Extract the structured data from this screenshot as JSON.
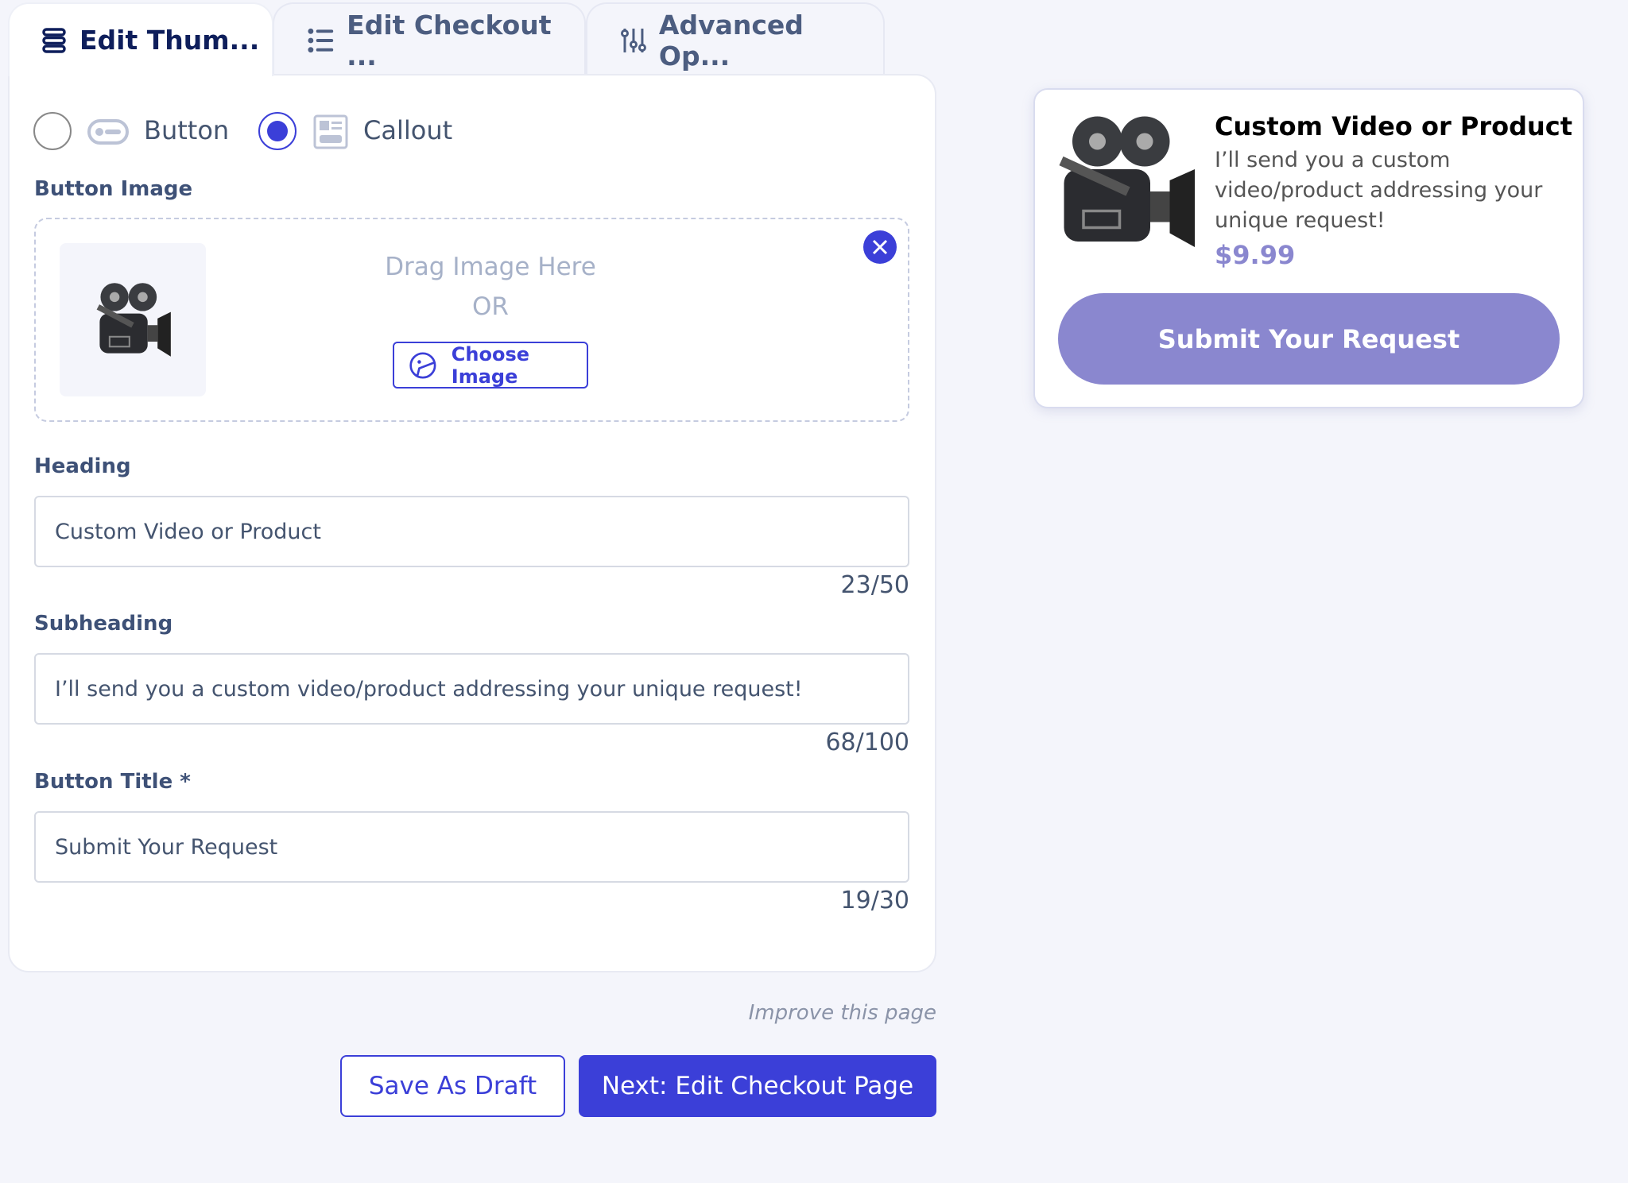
{
  "tabs": [
    {
      "label": "Edit Thum...",
      "icon": "stack-icon",
      "active": true
    },
    {
      "label": "Edit Checkout ...",
      "icon": "list-icon",
      "active": false
    },
    {
      "label": "Advanced Op...",
      "icon": "sliders-icon",
      "active": false
    }
  ],
  "style_options": [
    {
      "label": "Button",
      "selected": false
    },
    {
      "label": "Callout",
      "selected": true
    }
  ],
  "button_image": {
    "label": "Button Image",
    "drag_text": "Drag Image Here",
    "or_text": "OR",
    "choose_label": "Choose Image"
  },
  "heading": {
    "label": "Heading",
    "value": "Custom Video or Product",
    "counter": "23/50"
  },
  "subheading": {
    "label": "Subheading",
    "value": "I’ll send you a custom video/product addressing your unique request!",
    "counter": "68/100"
  },
  "button_title": {
    "label": "Button Title *",
    "value": "Submit Your Request",
    "counter": "19/30"
  },
  "improve_link": "Improve this page",
  "actions": {
    "save_draft": "Save As Draft",
    "next": "Next: Edit Checkout Page"
  },
  "preview": {
    "title": "Custom Video or Product",
    "subtitle": "I’ll send you a custom video/product addressing your unique request!",
    "price": "$9.99",
    "button": "Submit Your Request"
  },
  "colors": {
    "accent": "#3b3fd8",
    "preview_button": "#8a87cf",
    "price": "#8a87cf"
  }
}
